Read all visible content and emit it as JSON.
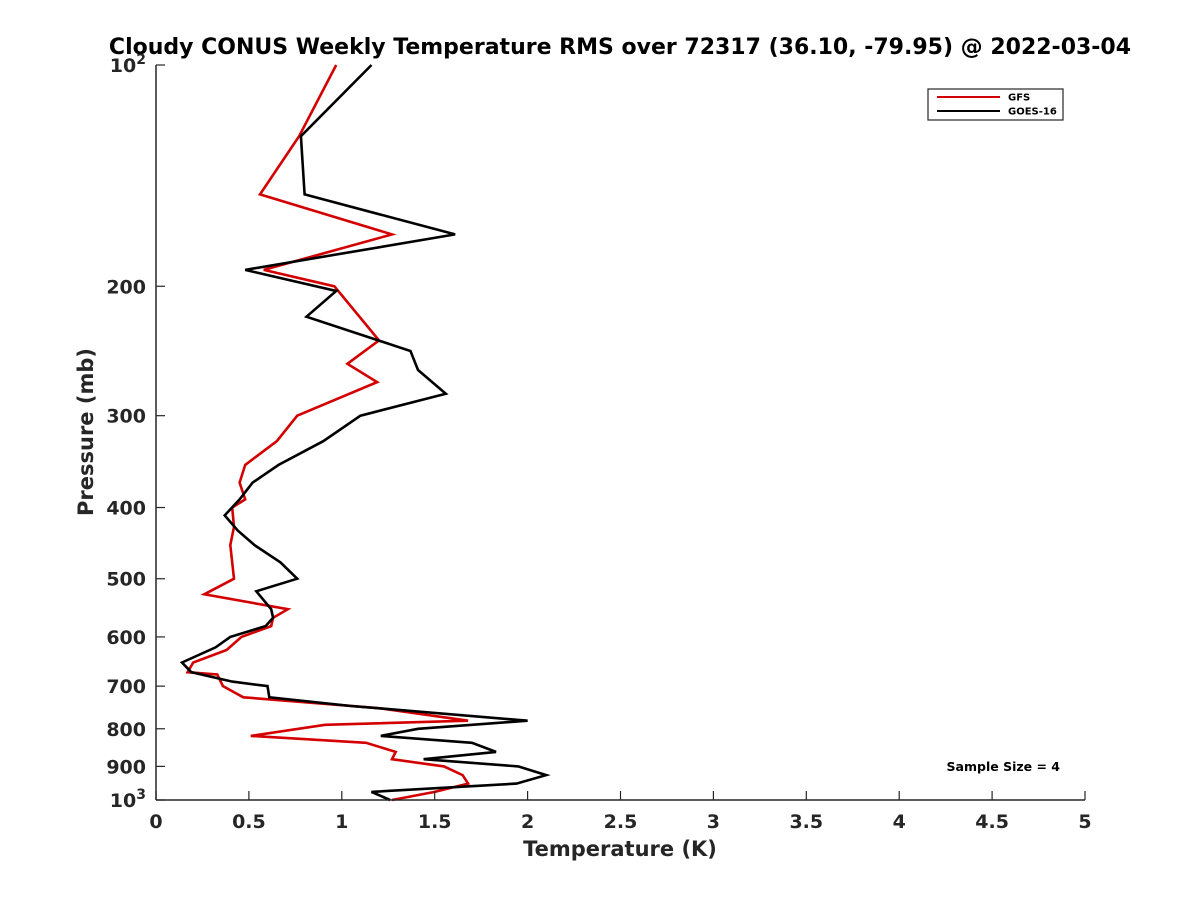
{
  "chart_data": {
    "type": "line",
    "title": "Cloudy CONUS Weekly Temperature RMS over 72317 (36.10, -79.95) @ 2022-03-04",
    "xlabel": "Temperature (K)",
    "ylabel": "Pressure (mb)",
    "xlim": [
      0,
      5
    ],
    "ylim": [
      100,
      1000
    ],
    "y_scale": "log",
    "y_reversed": true,
    "x_ticks": [
      "0",
      "0.5",
      "1",
      "1.5",
      "2",
      "2.5",
      "3",
      "3.5",
      "4",
      "4.5",
      "5"
    ],
    "y_ticks": [
      {
        "value": 100,
        "base": "10",
        "exp": "2"
      },
      {
        "value": 200,
        "label": "200"
      },
      {
        "value": 300,
        "label": "300"
      },
      {
        "value": 400,
        "label": "400"
      },
      {
        "value": 500,
        "label": "500"
      },
      {
        "value": 600,
        "label": "600"
      },
      {
        "value": 700,
        "label": "700"
      },
      {
        "value": 800,
        "label": "800"
      },
      {
        "value": 900,
        "label": "900"
      },
      {
        "value": 1000,
        "base": "10",
        "exp": "3"
      }
    ],
    "grid": false,
    "legend_position": "top-right",
    "annotation": "Sample Size = 4",
    "series": [
      {
        "name": "GFS",
        "color": "#d40000",
        "points": [
          [
            0.97,
            100
          ],
          [
            0.77,
            125
          ],
          [
            0.56,
            150
          ],
          [
            1.27,
            170
          ],
          [
            0.58,
            190
          ],
          [
            0.96,
            200
          ],
          [
            1.2,
            237
          ],
          [
            1.03,
            255
          ],
          [
            1.19,
            270
          ],
          [
            0.76,
            300
          ],
          [
            0.65,
            325
          ],
          [
            0.48,
            350
          ],
          [
            0.45,
            370
          ],
          [
            0.48,
            390
          ],
          [
            0.41,
            400
          ],
          [
            0.42,
            425
          ],
          [
            0.4,
            450
          ],
          [
            0.41,
            475
          ],
          [
            0.42,
            500
          ],
          [
            0.26,
            525
          ],
          [
            0.71,
            550
          ],
          [
            0.63,
            565
          ],
          [
            0.62,
            580
          ],
          [
            0.46,
            600
          ],
          [
            0.38,
            625
          ],
          [
            0.2,
            650
          ],
          [
            0.17,
            670
          ],
          [
            0.33,
            675
          ],
          [
            0.36,
            700
          ],
          [
            0.47,
            725
          ],
          [
            1.2,
            750
          ],
          [
            1.68,
            780
          ],
          [
            0.91,
            790
          ],
          [
            0.51,
            818
          ],
          [
            1.13,
            836
          ],
          [
            1.29,
            860
          ],
          [
            1.27,
            880
          ],
          [
            1.55,
            900
          ],
          [
            1.65,
            925
          ],
          [
            1.68,
            950
          ],
          [
            1.5,
            975
          ],
          [
            1.27,
            1000
          ]
        ]
      },
      {
        "name": "GOES-16",
        "color": "#000000",
        "points": [
          [
            1.16,
            100
          ],
          [
            0.78,
            125
          ],
          [
            0.8,
            150
          ],
          [
            1.61,
            170
          ],
          [
            0.48,
            190
          ],
          [
            0.97,
            203
          ],
          [
            0.81,
            220
          ],
          [
            1.37,
            245
          ],
          [
            1.41,
            260
          ],
          [
            1.56,
            280
          ],
          [
            1.1,
            300
          ],
          [
            0.9,
            325
          ],
          [
            0.66,
            350
          ],
          [
            0.52,
            370
          ],
          [
            0.45,
            390
          ],
          [
            0.37,
            410
          ],
          [
            0.44,
            430
          ],
          [
            0.53,
            450
          ],
          [
            0.67,
            475
          ],
          [
            0.76,
            500
          ],
          [
            0.54,
            520
          ],
          [
            0.62,
            550
          ],
          [
            0.63,
            565
          ],
          [
            0.59,
            580
          ],
          [
            0.4,
            600
          ],
          [
            0.32,
            620
          ],
          [
            0.14,
            650
          ],
          [
            0.19,
            670
          ],
          [
            0.41,
            690
          ],
          [
            0.6,
            700
          ],
          [
            0.61,
            725
          ],
          [
            1.05,
            745
          ],
          [
            2.0,
            780
          ],
          [
            1.41,
            800
          ],
          [
            1.21,
            818
          ],
          [
            1.7,
            836
          ],
          [
            1.83,
            860
          ],
          [
            1.44,
            880
          ],
          [
            1.95,
            900
          ],
          [
            2.1,
            925
          ],
          [
            1.94,
            950
          ],
          [
            1.16,
            975
          ],
          [
            1.26,
            1000
          ]
        ]
      }
    ]
  }
}
